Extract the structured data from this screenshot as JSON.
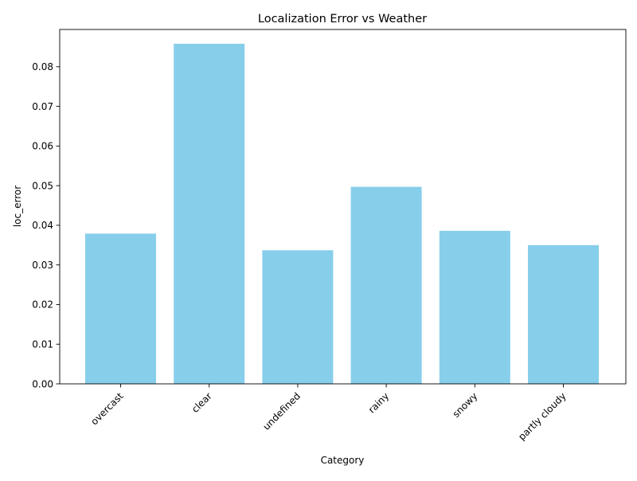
{
  "chart_data": {
    "type": "bar",
    "title": "Localization Error vs Weather",
    "xlabel": "Category",
    "ylabel": "loc_error",
    "categories": [
      "overcast",
      "clear",
      "undefined",
      "rainy",
      "snowy",
      "partly cloudy"
    ],
    "values": [
      0.0379,
      0.0858,
      0.0337,
      0.0497,
      0.0386,
      0.035
    ],
    "ylim": [
      0,
      0.0894
    ],
    "yticks": [
      0.0,
      0.01,
      0.02,
      0.03,
      0.04,
      0.05,
      0.06,
      0.07,
      0.08
    ],
    "ytick_labels": [
      "0.00",
      "0.01",
      "0.02",
      "0.03",
      "0.04",
      "0.05",
      "0.06",
      "0.07",
      "0.08"
    ],
    "bar_color": "#87ceeb",
    "grid": false,
    "legend": "none"
  }
}
